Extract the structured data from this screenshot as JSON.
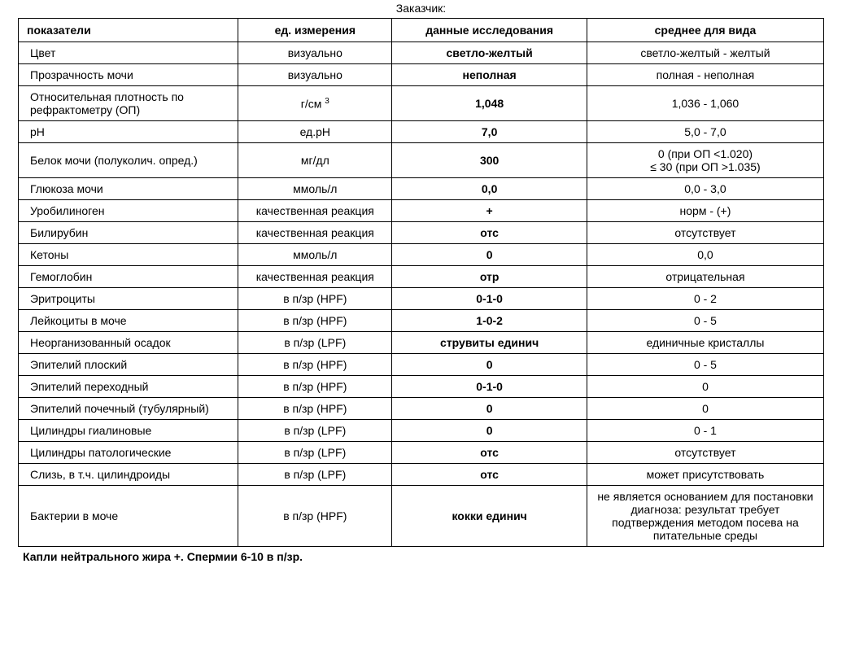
{
  "header": "Заказчик:",
  "columns": [
    "показатели",
    "ед. измерения",
    "данные исследования",
    "среднее для вида"
  ],
  "columnWidths": [
    "27.3%",
    "19.1%",
    "24.2%",
    "29.4%"
  ],
  "rows": [
    {
      "p": "Цвет",
      "u": "визуально",
      "d": "светло-желтый",
      "r": "светло-желтый - желтый"
    },
    {
      "p": "Прозрачность мочи",
      "u": "визуально",
      "d": "неполная",
      "r": "полная - неполная"
    },
    {
      "p": "Относительная плотность по рефрактометру (ОП)",
      "u_html": "г/см <span class=\"sup\">3</span>",
      "d": "1,048",
      "r": "1,036 - 1,060"
    },
    {
      "p": "pH",
      "u": "ед.pH",
      "d": "7,0",
      "r": "5,0 - 7,0"
    },
    {
      "p": "Белок мочи (полуколич. опред.)",
      "u": "мг/дл",
      "d": "300",
      "r": "0 (при ОП <1.020)\n≤ 30 (при ОП >1.035)"
    },
    {
      "p": "Глюкоза мочи",
      "u": "ммоль/л",
      "d": "0,0",
      "r": "0,0 - 3,0"
    },
    {
      "p": "Уробилиноген",
      "u": "качественная реакция",
      "d": "+",
      "r": "норм - (+)"
    },
    {
      "p": "Билирубин",
      "u": "качественная реакция",
      "d": "отс",
      "r": "отсутствует"
    },
    {
      "p": "Кетоны",
      "u": "ммоль/л",
      "d": "0",
      "r": "0,0"
    },
    {
      "p": "Гемоглобин",
      "u": "качественная реакция",
      "d": "отр",
      "r": "отрицательная"
    },
    {
      "p": "Эритроциты",
      "u": "в п/зр (HPF)",
      "d": "0-1-0",
      "r": "0 - 2"
    },
    {
      "p": "Лейкоциты в моче",
      "u": "в п/зр (HPF)",
      "d": "1-0-2",
      "r": "0 - 5"
    },
    {
      "p": "Неорганизованный осадок",
      "u": "в п/зр (LPF)",
      "d": "струвиты единич",
      "r": "единичные кристаллы"
    },
    {
      "p": "Эпителий плоский",
      "u": "в п/зр (HPF)",
      "d": "0",
      "r": "0 - 5"
    },
    {
      "p": "Эпителий переходный",
      "u": "в п/зр (HPF)",
      "d": "0-1-0",
      "r": "0"
    },
    {
      "p": "Эпителий почечный (тубулярный)",
      "u": "в п/зр (HPF)",
      "d": "0",
      "r": "0"
    },
    {
      "p": "Цилиндры гиалиновые",
      "u": "в п/зр (LPF)",
      "d": "0",
      "r": "0 - 1"
    },
    {
      "p": "Цилиндры патологические",
      "u": "в п/зр (LPF)",
      "d": "отс",
      "r": "отсутствует"
    },
    {
      "p": "Слизь, в т.ч. цилиндроиды",
      "u": "в п/зр (LPF)",
      "d": "отс",
      "r": "может присутствовать"
    },
    {
      "p": "Бактерии в моче",
      "u": "в п/зр (HPF)",
      "d": "кокки единич",
      "r": "не является основанием для постановки диагноза: результат требует подтверждения методом посева на питательные среды"
    }
  ],
  "footer": "Капли нейтрального жира +. Спермии 6-10 в п/зр.",
  "style": {
    "background_color": "#ffffff",
    "border_color": "#000000",
    "text_color": "#000000",
    "font_family": "Arial, sans-serif",
    "header_font_size": 14,
    "cell_font_size": 14,
    "header_font_weight": "bold",
    "data_col_font_weight": "bold"
  }
}
